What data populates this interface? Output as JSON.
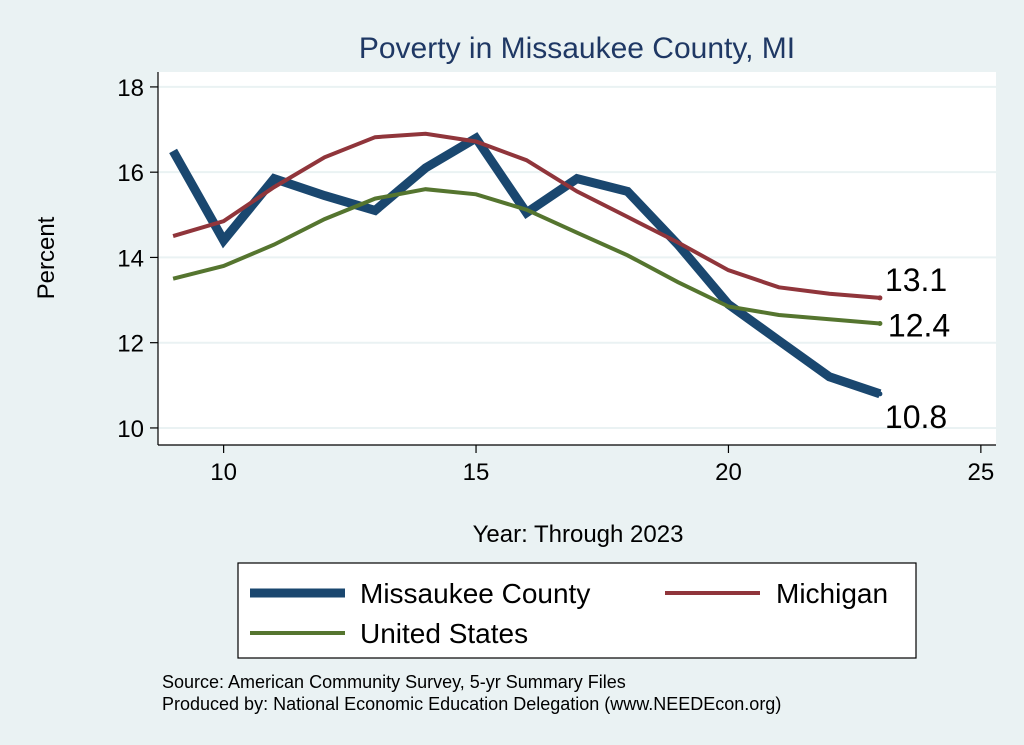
{
  "chart_data": {
    "type": "line",
    "title": "Poverty in Missaukee County, MI",
    "xlabel": "Year: Through 2023",
    "ylabel": "Percent",
    "xlim": [
      8.7,
      25.3
    ],
    "ylim": [
      9.6,
      18.35
    ],
    "xticks": [
      10,
      15,
      20,
      25
    ],
    "yticks": [
      10,
      12,
      14,
      16,
      18
    ],
    "grid": true,
    "legend_position": "bottom",
    "x": [
      9,
      10,
      11,
      12,
      13,
      14,
      15,
      16,
      17,
      18,
      19,
      20,
      21,
      22,
      23
    ],
    "series": [
      {
        "name": "Missaukee County",
        "color": "#1a476f",
        "values": [
          16.5,
          14.4,
          15.85,
          15.45,
          15.1,
          16.1,
          16.8,
          15.05,
          15.85,
          15.55,
          14.3,
          12.9,
          12.05,
          11.2,
          10.8
        ],
        "end_label": "10.8"
      },
      {
        "name": "Michigan",
        "color": "#90353b",
        "values": [
          14.5,
          14.85,
          15.65,
          16.35,
          16.82,
          16.9,
          16.72,
          16.28,
          15.55,
          14.95,
          14.35,
          13.7,
          13.3,
          13.15,
          13.05
        ],
        "end_label": "13.1"
      },
      {
        "name": "United States",
        "color": "#55752f",
        "values": [
          13.5,
          13.8,
          14.3,
          14.9,
          15.38,
          15.6,
          15.48,
          15.12,
          14.58,
          14.05,
          13.42,
          12.85,
          12.65,
          12.55,
          12.45
        ],
        "end_label": "12.4"
      }
    ],
    "source_note": "Source: American Community Survey, 5-yr Summary Files",
    "produced_note": "Produced by: National Economic Education Delegation (www.NEEDEcon.org)"
  }
}
